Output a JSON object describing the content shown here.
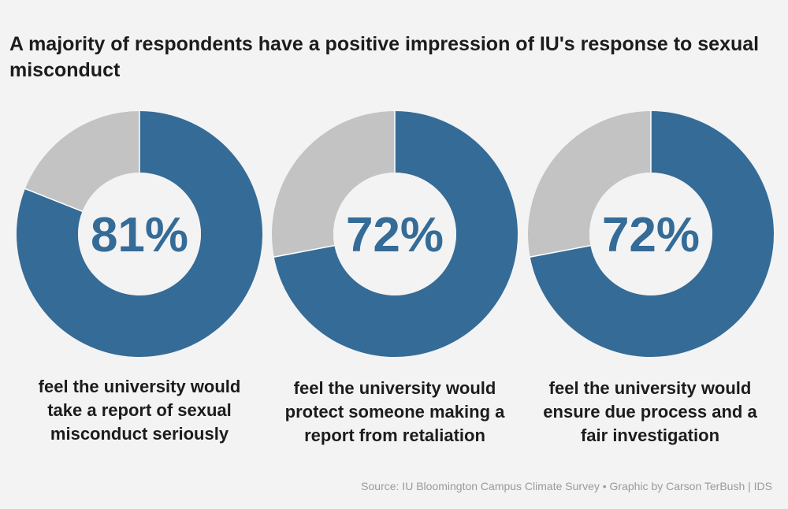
{
  "title": "A majority of respondents have a positive impression of IU's response to sexual misconduct",
  "colors": {
    "positive": "#356b97",
    "rest": "#c3c3c3",
    "center": "#f3f3f3"
  },
  "chart_data": {
    "type": "pie",
    "donuts": [
      {
        "value": 81,
        "label": "81%",
        "caption": "feel the university would take a report of sexual misconduct seriously"
      },
      {
        "value": 72,
        "label": "72%",
        "caption": "feel the university would protect someone making a report from retaliation"
      },
      {
        "value": 72,
        "label": "72%",
        "caption": "feel the university would ensure due process and a fair investigation"
      }
    ]
  },
  "source": "Source: IU Bloomington Campus Climate Survey • Graphic by Carson TerBush | IDS"
}
